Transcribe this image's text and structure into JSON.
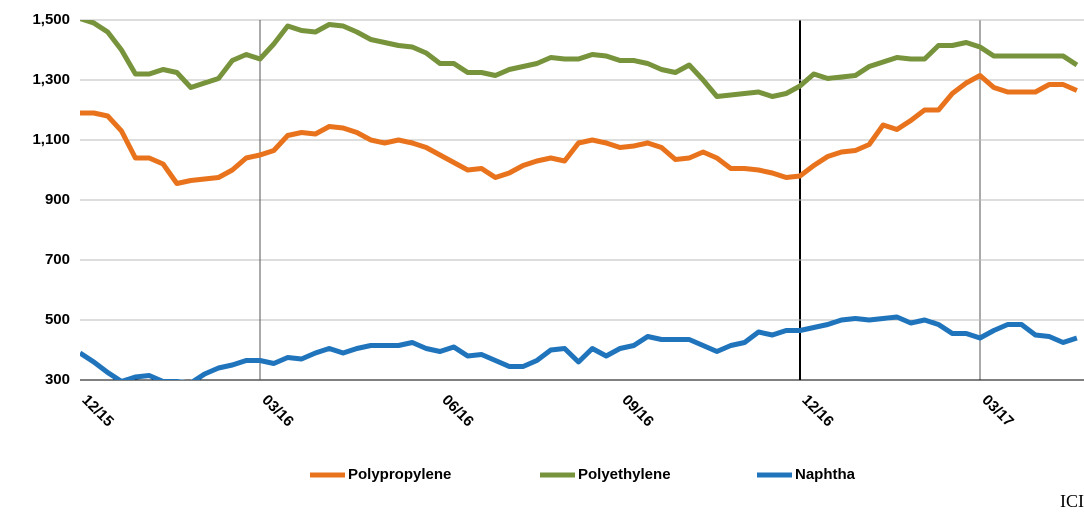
{
  "chart_data": {
    "type": "line",
    "source": "מקור: ICIS",
    "categories": [
      "12/15",
      null,
      null,
      null,
      null,
      null,
      null,
      null,
      null,
      null,
      null,
      null,
      null,
      "03/16",
      null,
      null,
      null,
      null,
      null,
      null,
      null,
      null,
      null,
      null,
      null,
      null,
      "06/16",
      null,
      null,
      null,
      null,
      null,
      null,
      null,
      null,
      null,
      null,
      null,
      null,
      "09/16",
      null,
      null,
      null,
      null,
      null,
      null,
      null,
      null,
      null,
      null,
      null,
      null,
      "12/16",
      null,
      null,
      null,
      null,
      null,
      null,
      null,
      null,
      null,
      null,
      null,
      null,
      "03/17",
      null,
      null,
      null,
      null,
      null,
      null,
      null
    ],
    "series": [
      {
        "name": "Polypropylene",
        "color": "#e8731c",
        "values": [
          1190,
          1190,
          1180,
          1130,
          1040,
          1040,
          1020,
          955,
          965,
          970,
          975,
          1000,
          1040,
          1050,
          1065,
          1115,
          1125,
          1120,
          1145,
          1140,
          1125,
          1100,
          1090,
          1100,
          1090,
          1075,
          1050,
          1025,
          1000,
          1005,
          975,
          990,
          1015,
          1030,
          1040,
          1030,
          1090,
          1100,
          1090,
          1075,
          1080,
          1090,
          1075,
          1035,
          1040,
          1060,
          1040,
          1005,
          1005,
          1000,
          990,
          975,
          980,
          1015,
          1045,
          1060,
          1065,
          1085,
          1150,
          1135,
          1165,
          1200,
          1200,
          1255,
          1290,
          1315,
          1275,
          1260,
          1260,
          1260,
          1285,
          1285,
          1265
        ]
      },
      {
        "name": "Polyethylene",
        "color": "#77933c",
        "values": [
          1505,
          1490,
          1460,
          1400,
          1320,
          1320,
          1335,
          1325,
          1275,
          1290,
          1305,
          1365,
          1385,
          1370,
          1420,
          1480,
          1465,
          1460,
          1485,
          1480,
          1460,
          1435,
          1425,
          1415,
          1410,
          1390,
          1355,
          1355,
          1325,
          1325,
          1315,
          1335,
          1345,
          1355,
          1375,
          1370,
          1370,
          1385,
          1380,
          1365,
          1365,
          1355,
          1335,
          1325,
          1350,
          1300,
          1245,
          1250,
          1255,
          1260,
          1245,
          1255,
          1280,
          1320,
          1305,
          1310,
          1315,
          1345,
          1360,
          1375,
          1370,
          1370,
          1415,
          1415,
          1425,
          1410,
          1380,
          1380,
          1380,
          1380,
          1380,
          1380,
          1350
        ]
      },
      {
        "name": "Naphtha",
        "color": "#1f74bc",
        "values": [
          390,
          360,
          325,
          295,
          310,
          315,
          295,
          295,
          290,
          320,
          340,
          350,
          365,
          365,
          355,
          375,
          370,
          390,
          405,
          390,
          405,
          415,
          415,
          415,
          425,
          405,
          395,
          410,
          380,
          385,
          365,
          345,
          345,
          365,
          400,
          405,
          360,
          405,
          380,
          405,
          415,
          445,
          435,
          435,
          435,
          415,
          395,
          415,
          425,
          460,
          450,
          465,
          465,
          475,
          485,
          500,
          505,
          500,
          505,
          510,
          490,
          500,
          485,
          455,
          455,
          440,
          465,
          485,
          485,
          450,
          445,
          425,
          440
        ]
      }
    ],
    "ylim": [
      300,
      1500
    ],
    "yticks": [
      300,
      500,
      700,
      900,
      {
        "value": 1100,
        "label": "1,100"
      },
      {
        "value": 1300,
        "label": "1,300"
      },
      {
        "value": 1500,
        "label": "1,500"
      }
    ],
    "grid": true,
    "legend": "bottom"
  }
}
